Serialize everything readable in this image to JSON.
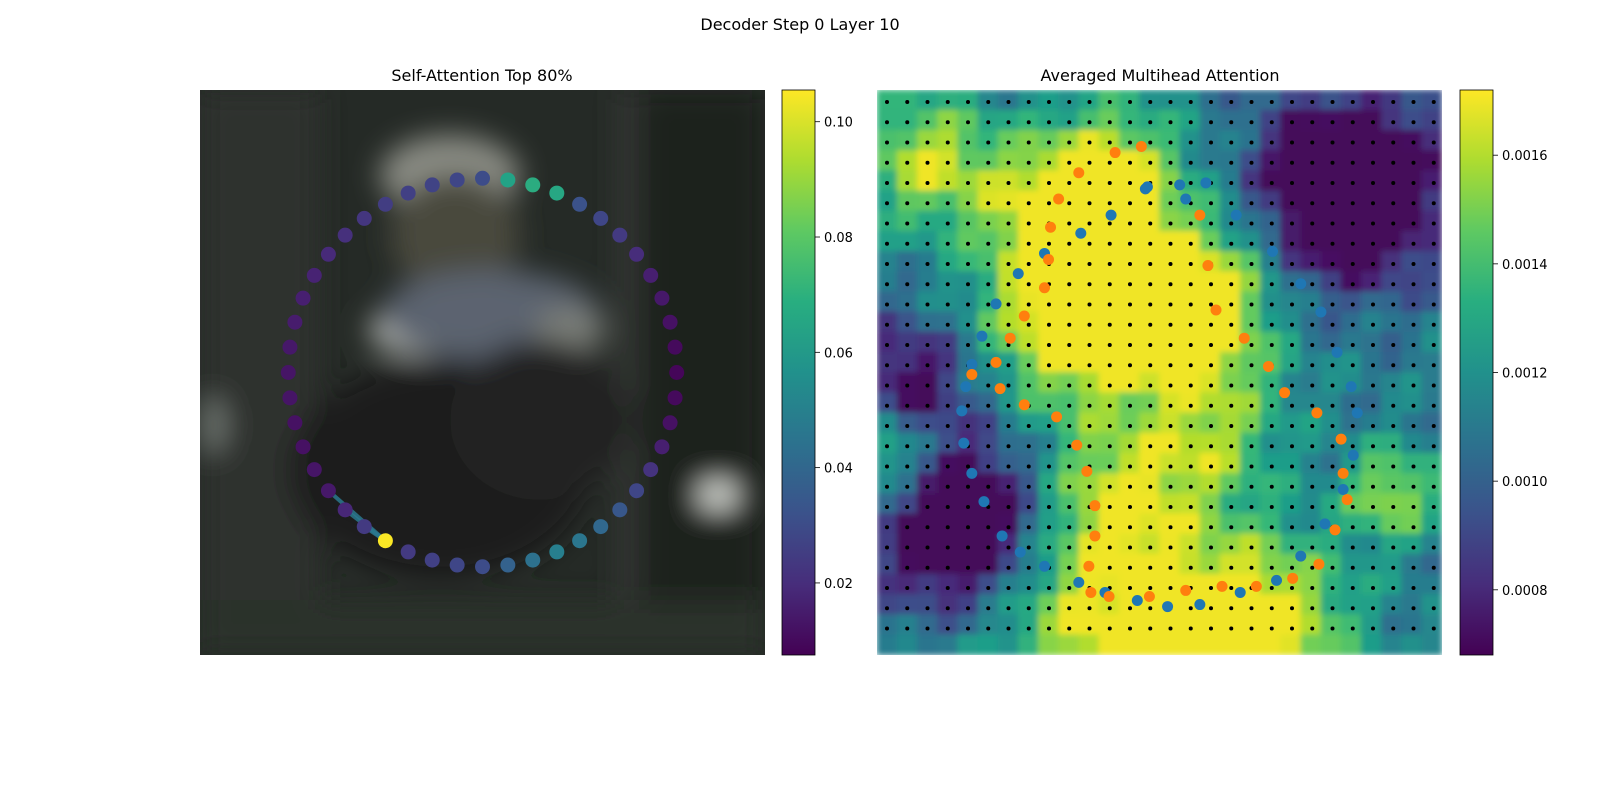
{
  "figure": {
    "suptitle": "Decoder Step 0 Layer 10"
  },
  "chart_data": [
    {
      "type": "scatter",
      "title": "Self-Attention Top 80%",
      "xlim": [
        0,
        64
      ],
      "ylim": [
        64,
        0
      ],
      "axes_visible": false,
      "background": "blurred photo of a person, dark tones",
      "colormap": "viridis",
      "colorbar": {
        "range": [
          0.0075,
          0.1055
        ],
        "ticks": [
          0.02,
          0.04,
          0.06,
          0.08,
          0.1
        ],
        "tick_labels": [
          "0.02",
          "0.04",
          "0.06",
          "0.08",
          "0.10"
        ]
      },
      "contour": {
        "center": [
          32,
          32
        ],
        "radius_x": 22,
        "radius_y": 22,
        "n_points": 48,
        "values": [
          0.03,
          0.064,
          0.068,
          0.066,
          0.032,
          0.028,
          0.024,
          0.02,
          0.016,
          0.014,
          0.012,
          0.01,
          0.009,
          0.01,
          0.012,
          0.016,
          0.022,
          0.028,
          0.034,
          0.04,
          0.046,
          0.05,
          0.044,
          0.038,
          0.03,
          0.028,
          0.026,
          0.024,
          0.105,
          0.024,
          0.018,
          0.014,
          0.013,
          0.012,
          0.012,
          0.013,
          0.013,
          0.014,
          0.015,
          0.016,
          0.017,
          0.019,
          0.021,
          0.023,
          0.025,
          0.026,
          0.027,
          0.028
        ]
      },
      "attention_links": {
        "from": 28,
        "to": [
          29,
          30,
          31
        ],
        "color": "#2a788e"
      }
    },
    {
      "type": "heatmap",
      "title": "Averaged Multihead Attention",
      "xlim": [
        0,
        28
      ],
      "ylim": [
        28,
        0
      ],
      "axes_visible": false,
      "colormap": "viridis",
      "colorbar": {
        "range": [
          0.00068,
          0.00172
        ],
        "ticks": [
          0.0008,
          0.001,
          0.0012,
          0.0014,
          0.0016
        ],
        "tick_labels": [
          "0.0008",
          "0.0010",
          "0.0012",
          "0.0014",
          "0.0016"
        ]
      },
      "grid_points": {
        "rows": 27,
        "cols": 28,
        "color": "#000000"
      },
      "series": [
        {
          "name": "",
          "color": "#1f77b4",
          "x": [
            16.3,
            15.0,
            13.3,
            11.6,
            10.1,
            8.3,
            7.0,
            5.9,
            5.2,
            4.7,
            4.4,
            4.2,
            4.3,
            4.7,
            5.3,
            6.2,
            7.1,
            8.3,
            10.0,
            11.3,
            12.9,
            14.4,
            16.0,
            18.0,
            19.8,
            21.0,
            22.2,
            23.1,
            23.6,
            23.8,
            23.5,
            22.8,
            22.0,
            21.0,
            19.6,
            17.8,
            15.3,
            13.4
          ],
          "y": [
            4.6,
            4.7,
            4.9,
            6.2,
            7.1,
            8.1,
            9.1,
            10.6,
            12.2,
            13.6,
            14.7,
            15.9,
            17.5,
            19.0,
            20.4,
            22.1,
            22.9,
            23.6,
            24.4,
            24.9,
            25.3,
            25.6,
            25.5,
            24.9,
            24.3,
            23.1,
            21.5,
            19.8,
            18.1,
            16.0,
            14.7,
            13.0,
            11.0,
            9.6,
            8.0,
            6.2,
            5.4,
            4.8
          ]
        },
        {
          "name": "",
          "color": "#ff7f0e",
          "x": [
            13.1,
            11.8,
            10.0,
            9.0,
            8.6,
            8.5,
            8.3,
            7.3,
            6.6,
            5.9,
            4.7,
            6.1,
            7.3,
            8.9,
            9.9,
            10.4,
            10.8,
            10.8,
            10.5,
            10.6,
            11.5,
            13.5,
            15.3,
            17.1,
            18.8,
            20.6,
            21.9,
            22.7,
            23.3,
            23.1,
            23.0,
            21.8,
            20.2,
            19.4,
            18.2,
            16.8,
            16.4,
            16.0
          ],
          "y": [
            2.8,
            3.1,
            4.1,
            5.4,
            6.8,
            8.4,
            9.8,
            11.2,
            12.3,
            13.5,
            14.1,
            14.8,
            15.6,
            16.2,
            17.6,
            18.9,
            20.6,
            22.1,
            23.6,
            24.9,
            25.1,
            25.1,
            24.8,
            24.6,
            24.6,
            24.2,
            23.5,
            21.8,
            20.3,
            19.0,
            17.3,
            16.0,
            15.0,
            13.7,
            12.3,
            10.9,
            8.7,
            6.2
          ]
        }
      ]
    }
  ]
}
